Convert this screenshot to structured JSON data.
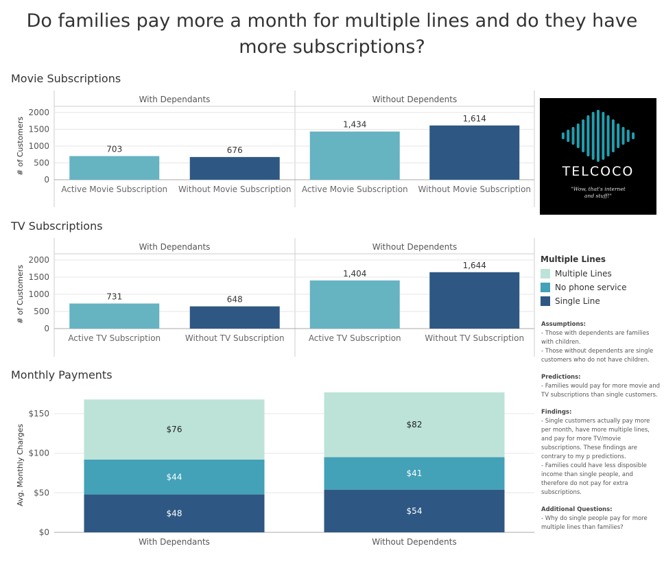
{
  "title": "Do families pay more a month for multiple lines and do they have more subscriptions?",
  "colors": {
    "multiple_lines": "#bde3d8",
    "no_phone_service": "#43a1b8",
    "single_line": "#2e5883",
    "active_bar": "#66b3c1",
    "axis": "#999999",
    "grid": "#e6e6e6",
    "text": "#333333"
  },
  "legend": {
    "title": "Multiple Lines",
    "items": [
      {
        "label": "Multiple Lines",
        "color": "#bde3d8"
      },
      {
        "label": "No phone service",
        "color": "#43a1b8"
      },
      {
        "label": "Single Line",
        "color": "#2e5883"
      }
    ]
  },
  "logo": {
    "name": "TELCOCO",
    "tagline_1": "\"Wow, that's internet",
    "tagline_2": "and stuff!\""
  },
  "notes": [
    {
      "heading": "Assumptions:",
      "lines": [
        "- Those with dependents are families with children.",
        "- Those without dependents are single customers who do not have children."
      ]
    },
    {
      "heading": "Predictions:",
      "lines": [
        "- Families would pay for more movie and TV subscriptions than single customers."
      ]
    },
    {
      "heading": "Findings:",
      "lines": [
        "- Single customers actually pay more per month, have more multiple lines, and pay for more TV/movie subscriptions. These findings are contrary to my p predictions.",
        "- Families could have less disposible income than single people, and therefore do not pay for extra subscriptions."
      ]
    },
    {
      "heading": "Additional Questions:",
      "lines": [
        "- Why do single people pay for more multiple lines than families?"
      ]
    }
  ],
  "chart_data": [
    {
      "type": "bar",
      "title": "Movie Subscriptions",
      "ylabel": "# of Customers",
      "ylim": [
        0,
        2000
      ],
      "yticks": [
        0,
        500,
        1000,
        1500,
        2000
      ],
      "panels": [
        {
          "name": "With Dependants",
          "categories": [
            "Active Movie Subscription",
            "Without Movie Subscription"
          ],
          "values": [
            703,
            676
          ],
          "labels": [
            "703",
            "676"
          ]
        },
        {
          "name": "Without Dependents",
          "categories": [
            "Active Movie Subscription",
            "Without Movie Subscription"
          ],
          "values": [
            1434,
            1614
          ],
          "labels": [
            "1,434",
            "1,614"
          ]
        }
      ]
    },
    {
      "type": "bar",
      "title": "TV Subscriptions",
      "ylabel": "# of Customers",
      "ylim": [
        0,
        2000
      ],
      "yticks": [
        0,
        500,
        1000,
        1500,
        2000
      ],
      "panels": [
        {
          "name": "With Dependants",
          "categories": [
            "Active TV Subscription",
            "Without TV Subscription"
          ],
          "values": [
            731,
            648
          ],
          "labels": [
            "731",
            "648"
          ]
        },
        {
          "name": "Without Dependents",
          "categories": [
            "Active TV Subscription",
            "Without TV Subscription"
          ],
          "values": [
            1404,
            1644
          ],
          "labels": [
            "1,404",
            "1,644"
          ]
        }
      ]
    },
    {
      "type": "bar",
      "stacked": true,
      "title": "Monthly Payments",
      "ylabel": "Avg. Monthly Charges",
      "ylim": [
        0,
        170
      ],
      "yticks": [
        0,
        50,
        100,
        150
      ],
      "ytick_labels": [
        "$0",
        "$50",
        "$100",
        "$150"
      ],
      "categories": [
        "With Dependants",
        "Without Dependents"
      ],
      "series": [
        {
          "name": "Single Line",
          "values": [
            48,
            54
          ],
          "labels": [
            "$48",
            "$54"
          ]
        },
        {
          "name": "No phone service",
          "values": [
            44,
            41
          ],
          "labels": [
            "$44",
            "$41"
          ]
        },
        {
          "name": "Multiple Lines",
          "values": [
            76,
            82
          ],
          "labels": [
            "$76",
            "$82"
          ]
        }
      ]
    }
  ]
}
